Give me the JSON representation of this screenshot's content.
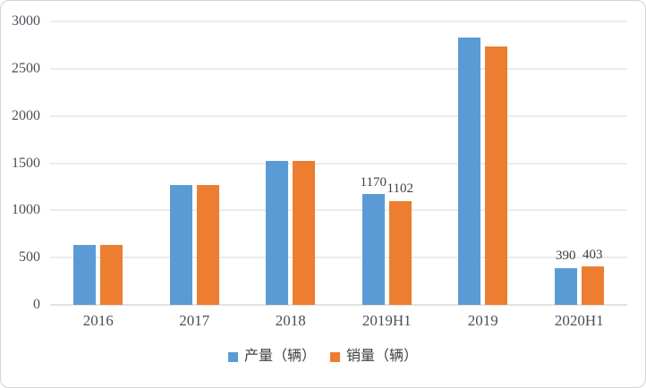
{
  "chart_data": {
    "type": "bar",
    "title": "",
    "xlabel": "",
    "ylabel": "",
    "categories": [
      "2016",
      "2017",
      "2018",
      "2019H1",
      "2019",
      "2020H1"
    ],
    "series": [
      {
        "name": "产量（辆）",
        "color": "#5B9BD5",
        "values": [
          630,
          1265,
          1525,
          1170,
          2830,
          390
        ],
        "value_labels": [
          null,
          null,
          null,
          "1170",
          null,
          "390"
        ]
      },
      {
        "name": "销量（辆）",
        "color": "#ED7D31",
        "values": [
          630,
          1265,
          1525,
          1102,
          2735,
          403
        ],
        "value_labels": [
          null,
          null,
          null,
          "1102",
          null,
          "403"
        ]
      }
    ],
    "ylim": [
      0,
      3000
    ],
    "ytick_step": 500,
    "yticks": [
      "0",
      "500",
      "1000",
      "1500",
      "2000",
      "2500",
      "3000"
    ],
    "grid": true,
    "legend_position": "bottom"
  },
  "colors": {
    "production_blue": "#5B9BD5",
    "sales_orange": "#ED7D31",
    "gridline": "#D9D9D9",
    "axis_line": "#C6C6C6",
    "tick_text": "#4E4E5A",
    "label_text": "#404040",
    "border": "#D3D3D3"
  }
}
